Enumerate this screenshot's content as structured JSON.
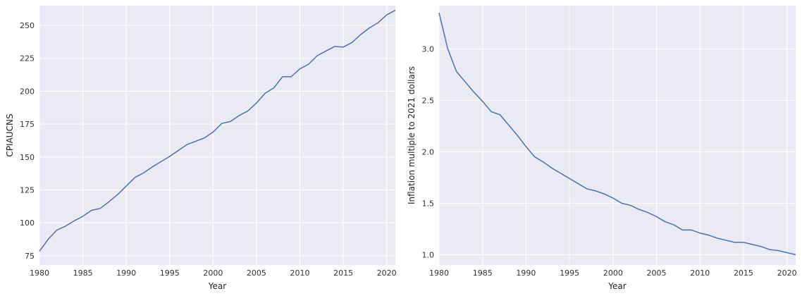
{
  "chart_data": [
    {
      "type": "line",
      "title": "",
      "xlabel": "Year",
      "ylabel": "CPIAUCNS",
      "grid": true,
      "xlim": [
        1980,
        2021
      ],
      "ylim": [
        68,
        265
      ],
      "x_ticks": [
        1980,
        1985,
        1990,
        1995,
        2000,
        2005,
        2010,
        2015,
        2020
      ],
      "y_ticks": [
        75,
        100,
        125,
        150,
        175,
        200,
        225,
        250
      ],
      "x_tick_labels": [
        "1980",
        "1985",
        "1990",
        "1995",
        "2000",
        "2005",
        "2010",
        "2015",
        "2020"
      ],
      "y_tick_labels": [
        "75",
        "100",
        "125",
        "150",
        "175",
        "200",
        "225",
        "250"
      ],
      "line_color": "#4c72b0",
      "background_color": "#eaeaf2",
      "x": [
        1980,
        1981,
        1982,
        1983,
        1984,
        1985,
        1986,
        1987,
        1988,
        1989,
        1990,
        1991,
        1992,
        1993,
        1994,
        1995,
        1996,
        1997,
        1998,
        1999,
        2000,
        2001,
        2002,
        2003,
        2004,
        2005,
        2006,
        2007,
        2008,
        2009,
        2010,
        2011,
        2012,
        2013,
        2014,
        2015,
        2016,
        2017,
        2018,
        2019,
        2020,
        2021
      ],
      "y": [
        78.5,
        87.5,
        94.5,
        97.5,
        101.5,
        105.0,
        109.5,
        111.0,
        116.0,
        121.5,
        128.0,
        134.5,
        138.0,
        142.5,
        146.5,
        150.5,
        155.0,
        159.5,
        162.0,
        164.5,
        169.0,
        175.5,
        177.0,
        181.5,
        185.0,
        191.0,
        198.5,
        202.5,
        211.0,
        211.0,
        217.0,
        220.5,
        227.0,
        230.5,
        234.0,
        233.5,
        237.0,
        243.0,
        248.0,
        252.0,
        258.0,
        261.5
      ]
    },
    {
      "type": "line",
      "title": "",
      "xlabel": "Year",
      "ylabel": "Inflation multiple to 2021 dollars",
      "grid": true,
      "xlim": [
        1980,
        2021
      ],
      "ylim": [
        0.9,
        3.42
      ],
      "x_ticks": [
        1980,
        1985,
        1990,
        1995,
        2000,
        2005,
        2010,
        2015,
        2020
      ],
      "y_ticks": [
        1.0,
        1.5,
        2.0,
        2.5,
        3.0
      ],
      "x_tick_labels": [
        "1980",
        "1985",
        "1990",
        "1995",
        "2000",
        "2005",
        "2010",
        "2015",
        "2020"
      ],
      "y_tick_labels": [
        "1.0",
        "1.5",
        "2.0",
        "2.5",
        "3.0"
      ],
      "line_color": "#4c72b0",
      "background_color": "#eaeaf2",
      "x": [
        1980,
        1981,
        1982,
        1983,
        1984,
        1985,
        1986,
        1987,
        1988,
        1989,
        1990,
        1991,
        1992,
        1993,
        1994,
        1995,
        1996,
        1997,
        1998,
        1999,
        2000,
        2001,
        2002,
        2003,
        2004,
        2005,
        2006,
        2007,
        2008,
        2009,
        2010,
        2011,
        2012,
        2013,
        2014,
        2015,
        2016,
        2017,
        2018,
        2019,
        2020,
        2021
      ],
      "y": [
        3.35,
        3.0,
        2.78,
        2.68,
        2.58,
        2.49,
        2.39,
        2.36,
        2.26,
        2.16,
        2.05,
        1.95,
        1.9,
        1.84,
        1.79,
        1.74,
        1.69,
        1.64,
        1.62,
        1.59,
        1.55,
        1.5,
        1.48,
        1.44,
        1.41,
        1.37,
        1.32,
        1.29,
        1.24,
        1.24,
        1.21,
        1.19,
        1.16,
        1.14,
        1.12,
        1.12,
        1.1,
        1.08,
        1.05,
        1.04,
        1.02,
        1.0
      ]
    }
  ]
}
